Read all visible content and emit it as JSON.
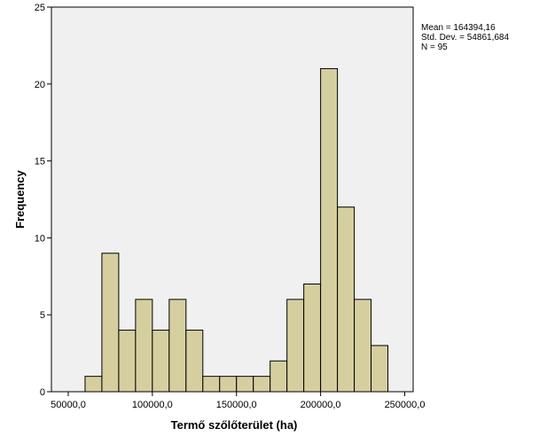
{
  "chart_data": {
    "type": "bar",
    "subtype": "histogram",
    "xlabel": "Termő szőlőterület (ha)",
    "ylabel": "Frequency",
    "ylim": [
      0,
      25
    ],
    "xlim": [
      40000,
      255000
    ],
    "x_ticks": [
      50000,
      100000,
      150000,
      200000,
      250000
    ],
    "x_tick_labels": [
      "50000,0",
      "100000,0",
      "150000,0",
      "200000,0",
      "250000,0"
    ],
    "y_ticks": [
      0,
      5,
      10,
      15,
      20,
      25
    ],
    "y_tick_labels": [
      "0",
      "5",
      "10",
      "15",
      "20",
      "25"
    ],
    "bin_start": 60000,
    "bin_width": 10000,
    "values": [
      1,
      9,
      4,
      6,
      4,
      6,
      4,
      1,
      1,
      1,
      1,
      2,
      6,
      7,
      21,
      12,
      6,
      3
    ],
    "bar_color": "#d5cfa0",
    "plot_background": "#f0f0f0",
    "grid": false,
    "stats": {
      "mean": "Mean = 164394,16",
      "std": "Std. Dev. = 54861,684",
      "n": "N = 95"
    }
  }
}
